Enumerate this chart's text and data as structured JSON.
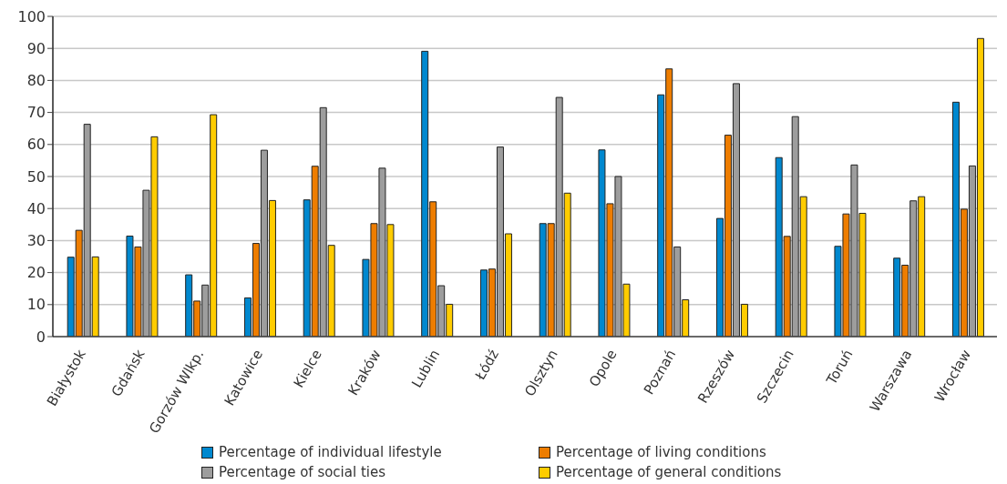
{
  "chart_data": {
    "type": "bar",
    "categories": [
      "Białystok",
      "Gdańsk",
      "Gorzów Wlkp.",
      "Katowice",
      "Kielce",
      "Kraków",
      "Lublin",
      "Łódź",
      "Olsztyn",
      "Opole",
      "Poznań",
      "Rzeszów",
      "Szczecin",
      "Toruń",
      "Warszawa",
      "Wrocław"
    ],
    "series": [
      {
        "name": "Percentage of individual lifestyle",
        "color": "#0088cf",
        "values": [
          24.8,
          31.4,
          19.3,
          12.1,
          42.7,
          24.1,
          89.1,
          20.8,
          35.3,
          58.3,
          75.5,
          36.9,
          55.9,
          28.2,
          24.5,
          73.2
        ]
      },
      {
        "name": "Percentage of living conditions",
        "color": "#ee7d00",
        "values": [
          33.2,
          28.0,
          11.1,
          29.1,
          53.2,
          35.3,
          42.1,
          21.1,
          35.3,
          41.5,
          83.6,
          62.9,
          31.3,
          38.3,
          22.3,
          39.8
        ]
      },
      {
        "name": "Percentage of social ties",
        "color": "#9d9d9d",
        "values": [
          66.3,
          45.7,
          16.1,
          58.2,
          71.5,
          52.6,
          15.9,
          59.2,
          74.7,
          50.0,
          28.0,
          79.0,
          68.7,
          53.6,
          42.4,
          53.3
        ]
      },
      {
        "name": "Percentage of general conditions",
        "color": "#ffcc00",
        "values": [
          24.9,
          62.4,
          69.3,
          42.5,
          28.5,
          35.0,
          10.1,
          32.1,
          44.8,
          16.4,
          11.5,
          10.1,
          43.7,
          38.5,
          43.7,
          93.1
        ]
      }
    ],
    "ylim": [
      0,
      100
    ],
    "yticks": [
      0,
      10,
      20,
      30,
      40,
      50,
      60,
      70,
      80,
      90,
      100
    ],
    "grid": "y",
    "legend": "bottom"
  }
}
